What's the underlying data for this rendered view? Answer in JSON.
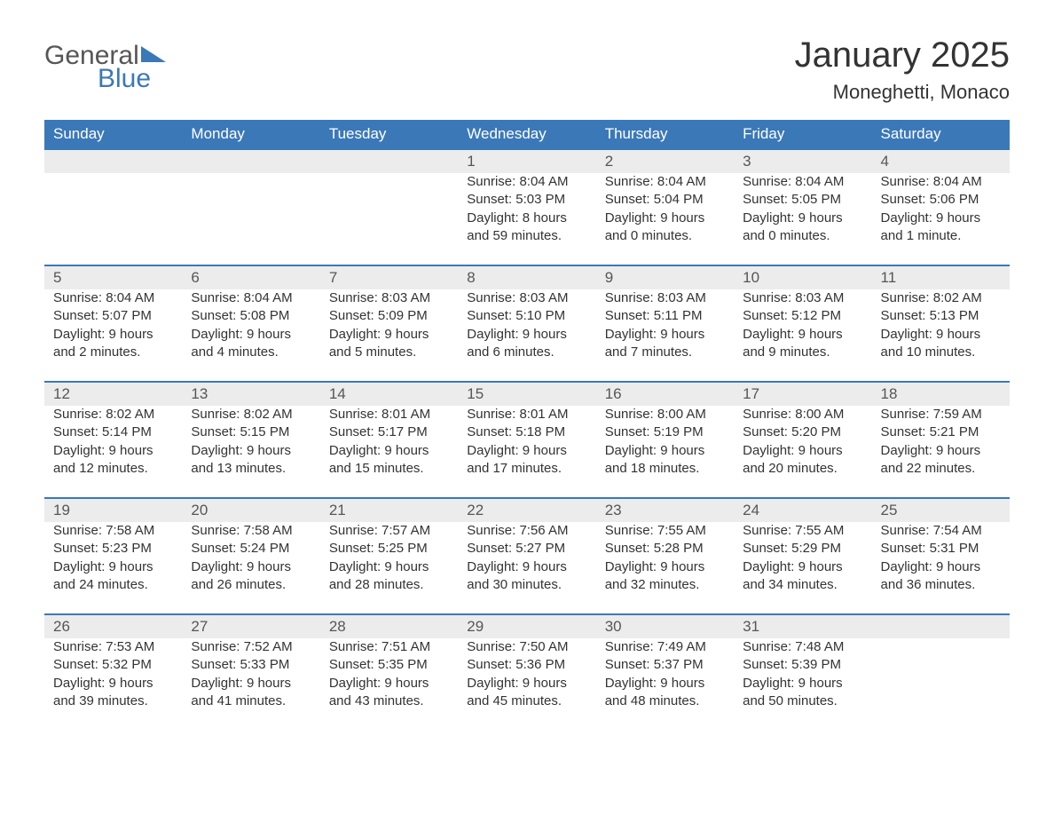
{
  "brand": {
    "general": "General",
    "blue": "Blue"
  },
  "title": "January 2025",
  "location": "Moneghetti, Monaco",
  "colors": {
    "header_bg": "#3b78b8",
    "header_text": "#ffffff",
    "daynum_bg": "#ececec",
    "border": "#3b78b8",
    "body_text": "#333333",
    "logo_general": "#565656",
    "logo_blue": "#3b78b8",
    "page_bg": "#ffffff"
  },
  "typography": {
    "title_fontsize": 40,
    "location_fontsize": 22,
    "header_fontsize": 17,
    "body_fontsize": 15
  },
  "day_headers": [
    "Sunday",
    "Monday",
    "Tuesday",
    "Wednesday",
    "Thursday",
    "Friday",
    "Saturday"
  ],
  "weeks": [
    [
      null,
      null,
      null,
      {
        "n": "1",
        "sunrise": "Sunrise: 8:04 AM",
        "sunset": "Sunset: 5:03 PM",
        "d1": "Daylight: 8 hours",
        "d2": "and 59 minutes."
      },
      {
        "n": "2",
        "sunrise": "Sunrise: 8:04 AM",
        "sunset": "Sunset: 5:04 PM",
        "d1": "Daylight: 9 hours",
        "d2": "and 0 minutes."
      },
      {
        "n": "3",
        "sunrise": "Sunrise: 8:04 AM",
        "sunset": "Sunset: 5:05 PM",
        "d1": "Daylight: 9 hours",
        "d2": "and 0 minutes."
      },
      {
        "n": "4",
        "sunrise": "Sunrise: 8:04 AM",
        "sunset": "Sunset: 5:06 PM",
        "d1": "Daylight: 9 hours",
        "d2": "and 1 minute."
      }
    ],
    [
      {
        "n": "5",
        "sunrise": "Sunrise: 8:04 AM",
        "sunset": "Sunset: 5:07 PM",
        "d1": "Daylight: 9 hours",
        "d2": "and 2 minutes."
      },
      {
        "n": "6",
        "sunrise": "Sunrise: 8:04 AM",
        "sunset": "Sunset: 5:08 PM",
        "d1": "Daylight: 9 hours",
        "d2": "and 4 minutes."
      },
      {
        "n": "7",
        "sunrise": "Sunrise: 8:03 AM",
        "sunset": "Sunset: 5:09 PM",
        "d1": "Daylight: 9 hours",
        "d2": "and 5 minutes."
      },
      {
        "n": "8",
        "sunrise": "Sunrise: 8:03 AM",
        "sunset": "Sunset: 5:10 PM",
        "d1": "Daylight: 9 hours",
        "d2": "and 6 minutes."
      },
      {
        "n": "9",
        "sunrise": "Sunrise: 8:03 AM",
        "sunset": "Sunset: 5:11 PM",
        "d1": "Daylight: 9 hours",
        "d2": "and 7 minutes."
      },
      {
        "n": "10",
        "sunrise": "Sunrise: 8:03 AM",
        "sunset": "Sunset: 5:12 PM",
        "d1": "Daylight: 9 hours",
        "d2": "and 9 minutes."
      },
      {
        "n": "11",
        "sunrise": "Sunrise: 8:02 AM",
        "sunset": "Sunset: 5:13 PM",
        "d1": "Daylight: 9 hours",
        "d2": "and 10 minutes."
      }
    ],
    [
      {
        "n": "12",
        "sunrise": "Sunrise: 8:02 AM",
        "sunset": "Sunset: 5:14 PM",
        "d1": "Daylight: 9 hours",
        "d2": "and 12 minutes."
      },
      {
        "n": "13",
        "sunrise": "Sunrise: 8:02 AM",
        "sunset": "Sunset: 5:15 PM",
        "d1": "Daylight: 9 hours",
        "d2": "and 13 minutes."
      },
      {
        "n": "14",
        "sunrise": "Sunrise: 8:01 AM",
        "sunset": "Sunset: 5:17 PM",
        "d1": "Daylight: 9 hours",
        "d2": "and 15 minutes."
      },
      {
        "n": "15",
        "sunrise": "Sunrise: 8:01 AM",
        "sunset": "Sunset: 5:18 PM",
        "d1": "Daylight: 9 hours",
        "d2": "and 17 minutes."
      },
      {
        "n": "16",
        "sunrise": "Sunrise: 8:00 AM",
        "sunset": "Sunset: 5:19 PM",
        "d1": "Daylight: 9 hours",
        "d2": "and 18 minutes."
      },
      {
        "n": "17",
        "sunrise": "Sunrise: 8:00 AM",
        "sunset": "Sunset: 5:20 PM",
        "d1": "Daylight: 9 hours",
        "d2": "and 20 minutes."
      },
      {
        "n": "18",
        "sunrise": "Sunrise: 7:59 AM",
        "sunset": "Sunset: 5:21 PM",
        "d1": "Daylight: 9 hours",
        "d2": "and 22 minutes."
      }
    ],
    [
      {
        "n": "19",
        "sunrise": "Sunrise: 7:58 AM",
        "sunset": "Sunset: 5:23 PM",
        "d1": "Daylight: 9 hours",
        "d2": "and 24 minutes."
      },
      {
        "n": "20",
        "sunrise": "Sunrise: 7:58 AM",
        "sunset": "Sunset: 5:24 PM",
        "d1": "Daylight: 9 hours",
        "d2": "and 26 minutes."
      },
      {
        "n": "21",
        "sunrise": "Sunrise: 7:57 AM",
        "sunset": "Sunset: 5:25 PM",
        "d1": "Daylight: 9 hours",
        "d2": "and 28 minutes."
      },
      {
        "n": "22",
        "sunrise": "Sunrise: 7:56 AM",
        "sunset": "Sunset: 5:27 PM",
        "d1": "Daylight: 9 hours",
        "d2": "and 30 minutes."
      },
      {
        "n": "23",
        "sunrise": "Sunrise: 7:55 AM",
        "sunset": "Sunset: 5:28 PM",
        "d1": "Daylight: 9 hours",
        "d2": "and 32 minutes."
      },
      {
        "n": "24",
        "sunrise": "Sunrise: 7:55 AM",
        "sunset": "Sunset: 5:29 PM",
        "d1": "Daylight: 9 hours",
        "d2": "and 34 minutes."
      },
      {
        "n": "25",
        "sunrise": "Sunrise: 7:54 AM",
        "sunset": "Sunset: 5:31 PM",
        "d1": "Daylight: 9 hours",
        "d2": "and 36 minutes."
      }
    ],
    [
      {
        "n": "26",
        "sunrise": "Sunrise: 7:53 AM",
        "sunset": "Sunset: 5:32 PM",
        "d1": "Daylight: 9 hours",
        "d2": "and 39 minutes."
      },
      {
        "n": "27",
        "sunrise": "Sunrise: 7:52 AM",
        "sunset": "Sunset: 5:33 PM",
        "d1": "Daylight: 9 hours",
        "d2": "and 41 minutes."
      },
      {
        "n": "28",
        "sunrise": "Sunrise: 7:51 AM",
        "sunset": "Sunset: 5:35 PM",
        "d1": "Daylight: 9 hours",
        "d2": "and 43 minutes."
      },
      {
        "n": "29",
        "sunrise": "Sunrise: 7:50 AM",
        "sunset": "Sunset: 5:36 PM",
        "d1": "Daylight: 9 hours",
        "d2": "and 45 minutes."
      },
      {
        "n": "30",
        "sunrise": "Sunrise: 7:49 AM",
        "sunset": "Sunset: 5:37 PM",
        "d1": "Daylight: 9 hours",
        "d2": "and 48 minutes."
      },
      {
        "n": "31",
        "sunrise": "Sunrise: 7:48 AM",
        "sunset": "Sunset: 5:39 PM",
        "d1": "Daylight: 9 hours",
        "d2": "and 50 minutes."
      },
      null
    ]
  ]
}
